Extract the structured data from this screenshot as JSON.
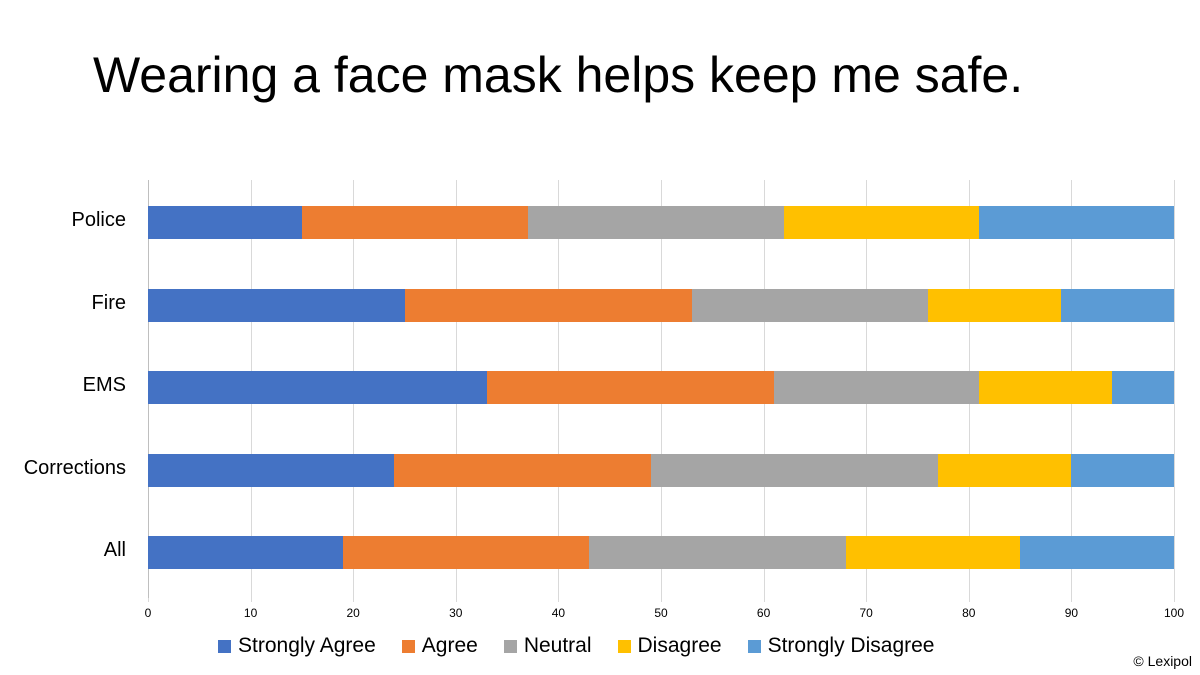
{
  "title": "Wearing a face mask helps keep me safe.",
  "credit": "© Lexipol",
  "chart_data": {
    "type": "bar",
    "orientation": "horizontal",
    "stacked": true,
    "title": "Wearing a face mask helps keep me safe.",
    "xlabel": "",
    "ylabel": "",
    "xlim": [
      0,
      100
    ],
    "x_ticks": [
      "0",
      "10",
      "20",
      "30",
      "40",
      "50",
      "60",
      "70",
      "80",
      "90",
      "100"
    ],
    "grid": true,
    "legend_position": "bottom",
    "categories": [
      "Police",
      "Fire",
      "EMS",
      "Corrections",
      "All"
    ],
    "series": [
      {
        "name": "Strongly Agree",
        "color": "#4472C4",
        "values": [
          15,
          25,
          33,
          24,
          19
        ]
      },
      {
        "name": "Agree",
        "color": "#ED7D31",
        "values": [
          22,
          28,
          28,
          25,
          24
        ]
      },
      {
        "name": "Neutral",
        "color": "#A5A5A5",
        "values": [
          25,
          23,
          20,
          28,
          25
        ]
      },
      {
        "name": "Disagree",
        "color": "#FFC000",
        "values": [
          19,
          13,
          13,
          13,
          17
        ]
      },
      {
        "name": "Strongly Disagree",
        "color": "#5B9BD5",
        "values": [
          19,
          11,
          6,
          10,
          15
        ]
      }
    ]
  }
}
